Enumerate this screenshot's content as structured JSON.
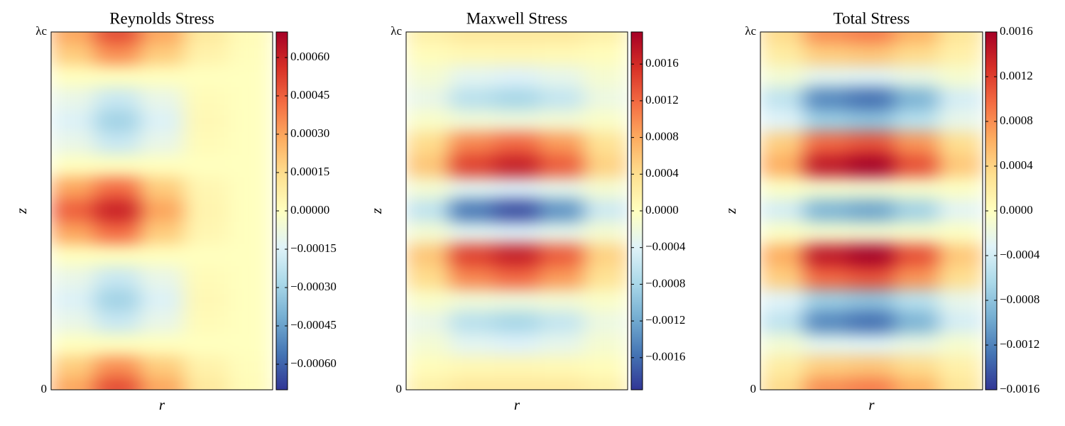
{
  "chart_data": [
    {
      "type": "heatmap",
      "title": "Reynolds Stress",
      "xlabel": "r",
      "ylabel": "z",
      "ylim": [
        0,
        1
      ],
      "yticks": [
        0,
        {
          "value": 1,
          "label": "λc"
        }
      ],
      "clim": [
        -0.0007,
        0.0007
      ],
      "cticks": [
        {
          "value": 0.0006,
          "label": "0.00060"
        },
        {
          "value": 0.00045,
          "label": "0.00045"
        },
        {
          "value": 0.0003,
          "label": "0.00030"
        },
        {
          "value": 0.00015,
          "label": "0.00015"
        },
        {
          "value": 0,
          "label": "0.00000"
        },
        {
          "value": -0.00015,
          "label": "−0.00015"
        },
        {
          "value": -0.0003,
          "label": "−0.00030"
        },
        {
          "value": -0.00045,
          "label": "−0.00045"
        },
        {
          "value": -0.0006,
          "label": "−0.00060"
        }
      ],
      "colormap": [
        "#313695",
        "#4575b4",
        "#74add1",
        "#abd9e9",
        "#e0f3f8",
        "#ffffbf",
        "#fee090",
        "#fdae61",
        "#f46d43",
        "#d73027",
        "#a50026"
      ],
      "z": [
        [
          0.0003,
          0.0005,
          0.0003,
          0.0001,
          2e-05
        ],
        [
          0.0002,
          0.00035,
          0.0002,
          6e-05,
          1e-05
        ],
        [
          0,
          0,
          0,
          0,
          0
        ],
        [
          -0.0001,
          -0.0002,
          -0.0001,
          2e-05,
          0
        ],
        [
          -0.00015,
          -0.0003,
          -0.00015,
          3e-05,
          0
        ],
        [
          -0.0001,
          -0.0002,
          -0.0001,
          2e-05,
          0
        ],
        [
          0,
          0,
          0,
          0,
          0
        ],
        [
          0.0003,
          0.00042,
          0.0002,
          4e-05,
          0
        ],
        [
          0.00045,
          0.0006,
          0.0003,
          5e-05,
          0
        ],
        [
          0.0003,
          0.00042,
          0.0002,
          4e-05,
          0
        ],
        [
          0,
          0,
          0,
          0,
          0
        ],
        [
          -0.0001,
          -0.0002,
          -0.0001,
          2e-05,
          0
        ],
        [
          -0.00015,
          -0.0003,
          -0.00015,
          3e-05,
          0
        ],
        [
          -0.0001,
          -0.0002,
          -0.0001,
          2e-05,
          0
        ],
        [
          0,
          0,
          0,
          0,
          0
        ],
        [
          0.0002,
          0.00035,
          0.0002,
          6e-05,
          1e-05
        ],
        [
          0.0003,
          0.0005,
          0.0003,
          0.0001,
          2e-05
        ]
      ]
    },
    {
      "type": "heatmap",
      "title": "Maxwell Stress",
      "xlabel": "r",
      "ylabel": "z",
      "ylim": [
        0,
        1
      ],
      "yticks": [
        0,
        {
          "value": 1,
          "label": "λc"
        }
      ],
      "clim": [
        -0.00195,
        0.00195
      ],
      "cticks": [
        0.0016,
        0.0012,
        0.0008,
        0.0004,
        {
          "value": 0,
          "label": "0.0000"
        },
        {
          "value": -0.0004,
          "label": "−0.0004"
        },
        {
          "value": -0.0008,
          "label": "−0.0008"
        },
        {
          "value": -0.0012,
          "label": "−0.0012"
        },
        {
          "value": -0.0016,
          "label": "−0.0016"
        }
      ],
      "colormap": [
        "#313695",
        "#4575b4",
        "#74add1",
        "#abd9e9",
        "#e0f3f8",
        "#ffffbf",
        "#fee090",
        "#fdae61",
        "#f46d43",
        "#d73027",
        "#a50026"
      ],
      "z": [
        [
          0.0002,
          0.0003,
          0.0003,
          0.0003,
          0.0002
        ],
        [
          4e-05,
          9e-05,
          0.0001,
          8e-05,
          3e-05
        ],
        [
          -0.00014,
          -0.00034,
          -0.0004,
          -0.0003,
          -0.00012
        ],
        [
          -0.00028,
          -0.00068,
          -0.0008,
          -0.0006,
          -0.00024
        ],
        [
          -7e-05,
          -0.00017,
          -0.0002,
          -0.00015,
          -6e-05
        ],
        [
          0.00042,
          0.00102,
          0.0012,
          0.0009,
          0.00036
        ],
        [
          0.0006,
          0.00145,
          0.0017,
          0.00128,
          0.00051
        ],
        [
          -0.00014,
          -0.00034,
          -0.0004,
          -0.0003,
          -0.00012
        ],
        [
          -0.00063,
          -0.00153,
          -0.0018,
          -0.00135,
          -0.00054
        ],
        [
          -0.00014,
          -0.00034,
          -0.0004,
          -0.0003,
          -0.00012
        ],
        [
          0.0006,
          0.00145,
          0.0017,
          0.00128,
          0.00051
        ],
        [
          0.00042,
          0.00102,
          0.0012,
          0.0009,
          0.00036
        ],
        [
          -7e-05,
          -0.00017,
          -0.0002,
          -0.00015,
          -6e-05
        ],
        [
          -0.00028,
          -0.00068,
          -0.0008,
          -0.0006,
          -0.00024
        ],
        [
          -0.00014,
          -0.00034,
          -0.0004,
          -0.0003,
          -0.00012
        ],
        [
          4e-05,
          9e-05,
          0.0001,
          8e-05,
          3e-05
        ],
        [
          0.0002,
          0.0003,
          0.0003,
          0.0003,
          0.0002
        ]
      ]
    },
    {
      "type": "heatmap",
      "title": "Total Stress",
      "xlabel": "r",
      "ylabel": "z",
      "ylim": [
        0,
        1
      ],
      "yticks": [
        0,
        {
          "value": 1,
          "label": "λc"
        }
      ],
      "clim": [
        -0.0016,
        0.0016
      ],
      "cticks": [
        0.0016,
        0.0012,
        0.0008,
        0.0004,
        {
          "value": 0,
          "label": "0.0000"
        },
        {
          "value": -0.0004,
          "label": "−0.0004"
        },
        {
          "value": -0.0008,
          "label": "−0.0008"
        },
        {
          "value": -0.0012,
          "label": "−0.0012"
        },
        {
          "value": -0.0016,
          "label": "−0.0016"
        }
      ],
      "colormap": [
        "#313695",
        "#4575b4",
        "#74add1",
        "#abd9e9",
        "#e0f3f8",
        "#ffffbf",
        "#fee090",
        "#fdae61",
        "#f46d43",
        "#d73027",
        "#a50026"
      ],
      "z": [
        [
          0.00036,
          0.00081,
          0.0009,
          0.00063,
          0.00027
        ],
        [
          0.0002,
          0.00045,
          0.0005,
          0.00035,
          0.00015
        ],
        [
          -0.00012,
          -0.00027,
          -0.0003,
          -0.00021,
          -9e-05
        ],
        [
          -0.00052,
          -0.00117,
          -0.0013,
          -0.00091,
          -0.00039
        ],
        [
          -0.00032,
          -0.00072,
          -0.0008,
          -0.00056,
          -0.00024
        ],
        [
          0.00044,
          0.00099,
          0.0011,
          0.00077,
          0.00033
        ],
        [
          0.00064,
          0.00144,
          0.0016,
          0.00112,
          0.00048
        ],
        [
          -4e-05,
          -9e-05,
          -0.0001,
          -7e-05,
          -3e-05
        ],
        [
          -0.0004,
          -0.0009,
          -0.001,
          -0.0007,
          -0.0003
        ],
        [
          -4e-05,
          -9e-05,
          -0.0001,
          -7e-05,
          -3e-05
        ],
        [
          0.00064,
          0.00144,
          0.0016,
          0.00112,
          0.00048
        ],
        [
          0.00044,
          0.00099,
          0.0011,
          0.00077,
          0.00033
        ],
        [
          -0.00032,
          -0.00072,
          -0.0008,
          -0.00056,
          -0.00024
        ],
        [
          -0.00052,
          -0.00117,
          -0.0013,
          -0.00091,
          -0.00039
        ],
        [
          -0.00012,
          -0.00027,
          -0.0003,
          -0.00021,
          -9e-05
        ],
        [
          0.0002,
          0.00045,
          0.0005,
          0.00035,
          0.00015
        ],
        [
          0.00036,
          0.00081,
          0.0009,
          0.00063,
          0.00027
        ]
      ]
    }
  ]
}
